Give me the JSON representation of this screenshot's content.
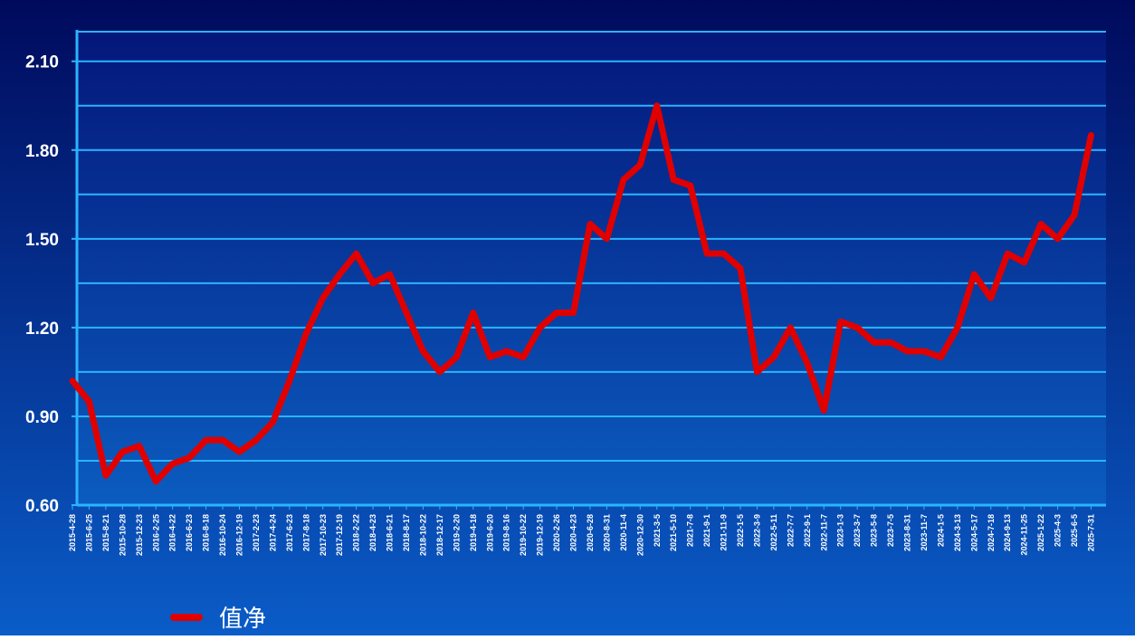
{
  "chart_data": {
    "type": "line",
    "categories": [
      "2015-4-28",
      "2015-6-25",
      "2015-8-21",
      "2015-10-28",
      "2015-12-23",
      "2016-2-25",
      "2016-4-22",
      "2016-6-23",
      "2016-8-18",
      "2016-10-24",
      "2016-12-19",
      "2017-2-23",
      "2017-4-24",
      "2017-6-23",
      "2017-8-18",
      "2017-10-23",
      "2017-12-19",
      "2018-2-22",
      "2018-4-23",
      "2018-6-21",
      "2018-8-17",
      "2018-10-22",
      "2018-12-17",
      "2019-2-20",
      "2019-4-18",
      "2019-6-20",
      "2019-8-16",
      "2019-10-22",
      "2019-12-19",
      "2020-2-26",
      "2020-4-23",
      "2020-6-28",
      "2020-8-31",
      "2020-11-4",
      "2020-12-30",
      "2021-3-5",
      "2021-5-10",
      "2021-7-8",
      "2021-9-1",
      "2021-11-9",
      "2022-1-5",
      "2022-3-9",
      "2022-5-11",
      "2022-7-7",
      "2022-9-1",
      "2022-11-7",
      "2023-1-3",
      "2023-3-7",
      "2023-5-8",
      "2023-7-5",
      "2023-8-31",
      "2023-11-7",
      "2024-1-5",
      "2024-3-13",
      "2024-5-17",
      "2024-7-18",
      "2024-9-13",
      "2024-11-25",
      "2025-1-22",
      "2025-4-3",
      "2025-6-5",
      "2025-7-31"
    ],
    "series": [
      {
        "name": "值净",
        "color": "#e00000",
        "values": [
          1.02,
          0.95,
          0.7,
          0.78,
          0.8,
          0.68,
          0.74,
          0.76,
          0.82,
          0.82,
          0.78,
          0.82,
          0.88,
          1.02,
          1.18,
          1.3,
          1.38,
          1.45,
          1.35,
          1.38,
          1.25,
          1.12,
          1.05,
          1.1,
          1.25,
          1.1,
          1.12,
          1.1,
          1.2,
          1.25,
          1.25,
          1.55,
          1.5,
          1.7,
          1.75,
          1.95,
          1.7,
          1.68,
          1.45,
          1.45,
          1.4,
          1.05,
          1.1,
          1.2,
          1.08,
          0.92,
          1.22,
          1.2,
          1.15,
          1.15,
          1.12,
          1.12,
          1.1,
          1.2,
          1.38,
          1.3,
          1.45,
          1.42,
          1.55,
          1.5,
          1.58,
          1.85
        ]
      }
    ],
    "ylim": [
      0.6,
      2.2
    ],
    "yticks": [
      {
        "value": 0.6,
        "label": "0.60"
      },
      {
        "value": 0.9,
        "label": "0.90"
      },
      {
        "value": 1.2,
        "label": "1.20"
      },
      {
        "value": 1.5,
        "label": "1.50"
      },
      {
        "value": 1.8,
        "label": "1.80"
      },
      {
        "value": 2.1,
        "label": "2.10"
      }
    ],
    "minor_yticks": [
      0.75,
      1.05,
      1.35,
      1.65,
      1.95
    ],
    "grid": true
  }
}
